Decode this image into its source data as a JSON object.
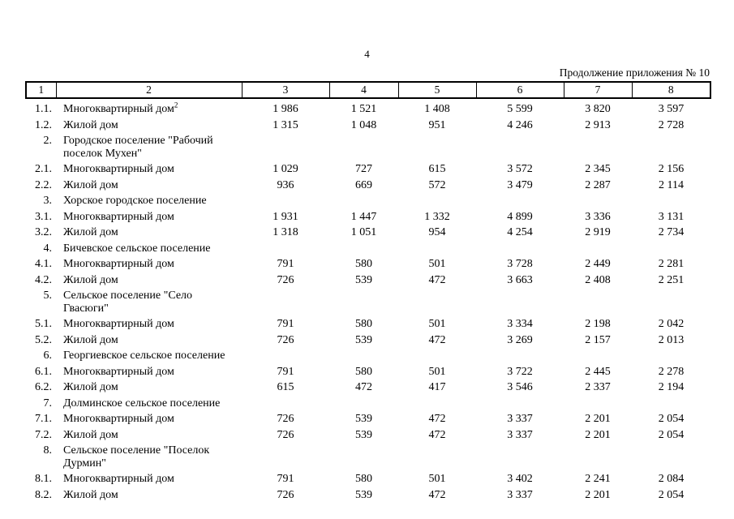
{
  "page": {
    "number": "4",
    "continuation_note": "Продолжение приложения № 10"
  },
  "table": {
    "columns": [
      "1",
      "2",
      "3",
      "4",
      "5",
      "6",
      "7",
      "8"
    ],
    "rows": [
      {
        "num": "1.1.",
        "label_lines": [
          "Многоквартирный дом"
        ],
        "sup": "2",
        "values": [
          "1 986",
          "1 521",
          "1 408",
          "5 599",
          "3 820",
          "3 597"
        ]
      },
      {
        "num": "1.2.",
        "label_lines": [
          "Жилой дом"
        ],
        "values": [
          "1 315",
          "1 048",
          "951",
          "4 246",
          "2 913",
          "2 728"
        ]
      },
      {
        "num": "2.",
        "label_lines": [
          "Городское поселение \"Рабочий",
          "поселок Мухен\""
        ],
        "values": []
      },
      {
        "num": "2.1.",
        "label_lines": [
          "Многоквартирный дом"
        ],
        "values": [
          "1 029",
          "727",
          "615",
          "3 572",
          "2 345",
          "2 156"
        ]
      },
      {
        "num": "2.2.",
        "label_lines": [
          "Жилой дом"
        ],
        "values": [
          "936",
          "669",
          "572",
          "3 479",
          "2 287",
          "2 114"
        ]
      },
      {
        "num": "3.",
        "label_lines": [
          "Хорское городское поселение"
        ],
        "values": []
      },
      {
        "num": "3.1.",
        "label_lines": [
          "Многоквартирный дом"
        ],
        "values": [
          "1 931",
          "1 447",
          "1 332",
          "4 899",
          "3 336",
          "3 131"
        ]
      },
      {
        "num": "3.2.",
        "label_lines": [
          "Жилой дом"
        ],
        "values": [
          "1 318",
          "1 051",
          "954",
          "4 254",
          "2 919",
          "2 734"
        ]
      },
      {
        "num": "4.",
        "label_lines": [
          "Бичевское сельское поселение"
        ],
        "values": []
      },
      {
        "num": "4.1.",
        "label_lines": [
          "Многоквартирный дом"
        ],
        "values": [
          "791",
          "580",
          "501",
          "3 728",
          "2 449",
          "2 281"
        ]
      },
      {
        "num": "4.2.",
        "label_lines": [
          "Жилой дом"
        ],
        "values": [
          "726",
          "539",
          "472",
          "3 663",
          "2 408",
          "2 251"
        ]
      },
      {
        "num": "5.",
        "label_lines": [
          "Сельское поселение \"Село",
          "Гвасюги\""
        ],
        "values": []
      },
      {
        "num": "5.1.",
        "label_lines": [
          "Многоквартирный дом"
        ],
        "values": [
          "791",
          "580",
          "501",
          "3 334",
          "2 198",
          "2 042"
        ]
      },
      {
        "num": "5.2.",
        "label_lines": [
          "Жилой дом"
        ],
        "values": [
          "726",
          "539",
          "472",
          "3 269",
          "2 157",
          "2 013"
        ]
      },
      {
        "num": "6.",
        "label_lines": [
          "Георгиевское сельское поселение"
        ],
        "values": []
      },
      {
        "num": "6.1.",
        "label_lines": [
          "Многоквартирный дом"
        ],
        "values": [
          "791",
          "580",
          "501",
          "3 722",
          "2 445",
          "2 278"
        ]
      },
      {
        "num": "6.2.",
        "label_lines": [
          "Жилой дом"
        ],
        "values": [
          "615",
          "472",
          "417",
          "3 546",
          "2 337",
          "2 194"
        ]
      },
      {
        "num": "7.",
        "label_lines": [
          "Долминское сельское поселение"
        ],
        "values": []
      },
      {
        "num": "7.1.",
        "label_lines": [
          "Многоквартирный дом"
        ],
        "values": [
          "726",
          "539",
          "472",
          "3 337",
          "2 201",
          "2 054"
        ]
      },
      {
        "num": "7.2.",
        "label_lines": [
          "Жилой дом"
        ],
        "values": [
          "726",
          "539",
          "472",
          "3 337",
          "2 201",
          "2 054"
        ]
      },
      {
        "num": "8.",
        "label_lines": [
          "Сельское поселение \"Поселок",
          "Дурмин\""
        ],
        "values": []
      },
      {
        "num": "8.1.",
        "label_lines": [
          "Многоквартирный дом"
        ],
        "values": [
          "791",
          "580",
          "501",
          "3 402",
          "2 241",
          "2 084"
        ]
      },
      {
        "num": "8.2.",
        "label_lines": [
          "Жилой дом"
        ],
        "values": [
          "726",
          "539",
          "472",
          "3 337",
          "2 201",
          "2 054"
        ]
      }
    ]
  }
}
